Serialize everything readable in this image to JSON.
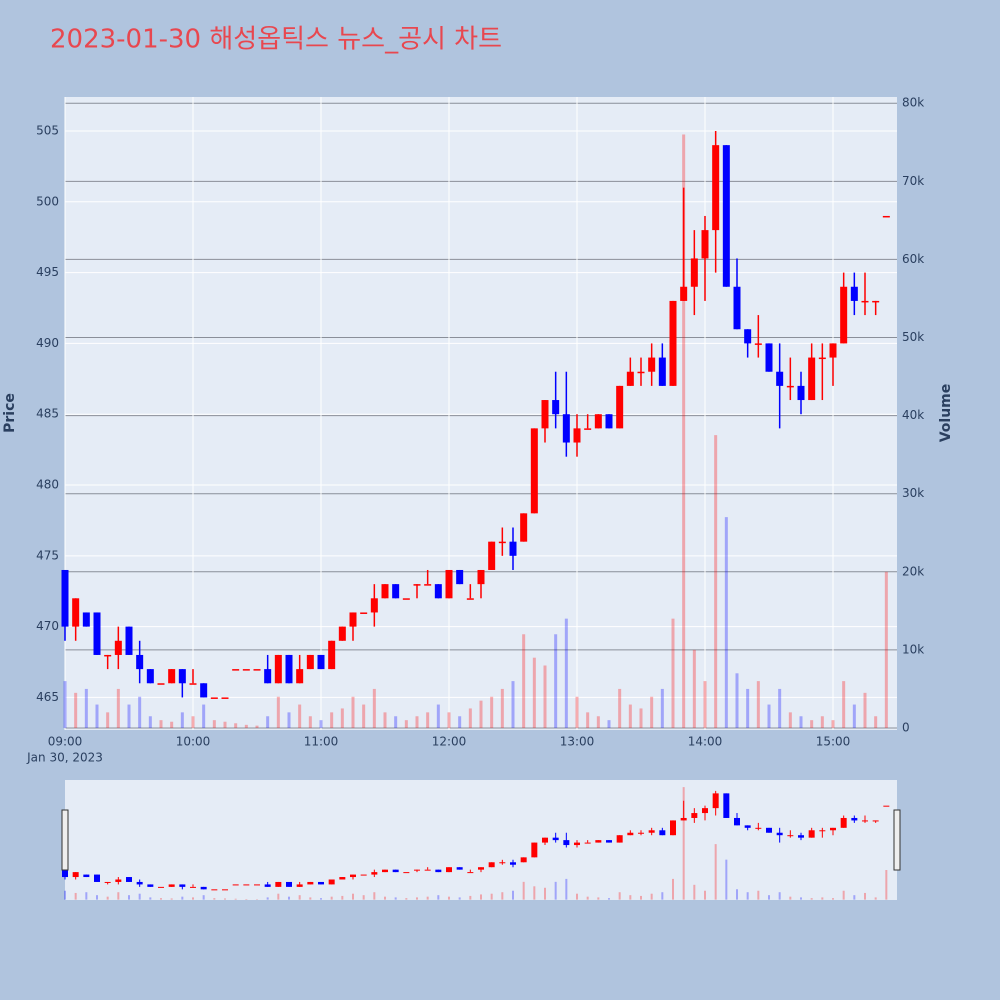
{
  "chart_data": {
    "type": "candlestick",
    "title": "2023-01-30 해성옵틱스 뉴스_공시 차트",
    "y_label": "Price",
    "y2_label": "Volume",
    "x_date_label": "Jan 30, 2023",
    "increasing_color": "#ff0000",
    "decreasing_color": "#0000ff",
    "xlim": [
      "09:00",
      "15:30"
    ],
    "xticks": [
      "09:00",
      "10:00",
      "11:00",
      "12:00",
      "13:00",
      "14:00",
      "15:00"
    ],
    "ylim": [
      462.7,
      507.4
    ],
    "yticks": [
      465,
      470,
      475,
      480,
      485,
      490,
      495,
      500,
      505
    ],
    "y2lim": [
      -260,
      80800
    ],
    "y2ticks": [
      0,
      {
        "value": 10000,
        "label": "10k"
      },
      {
        "value": 20000,
        "label": "20k"
      },
      {
        "value": 30000,
        "label": "30k"
      },
      {
        "value": 40000,
        "label": "40k"
      },
      {
        "value": 50000,
        "label": "50k"
      },
      {
        "value": 60000,
        "label": "60k"
      },
      {
        "value": 70000,
        "label": "70k"
      },
      {
        "value": 80000,
        "label": "80k"
      }
    ],
    "x": [
      "09:00",
      "09:05",
      "09:10",
      "09:15",
      "09:20",
      "09:25",
      "09:30",
      "09:35",
      "09:40",
      "09:45",
      "09:50",
      "09:55",
      "10:00",
      "10:05",
      "10:10",
      "10:15",
      "10:20",
      "10:25",
      "10:30",
      "10:35",
      "10:40",
      "10:45",
      "10:50",
      "10:55",
      "11:00",
      "11:05",
      "11:10",
      "11:15",
      "11:20",
      "11:25",
      "11:30",
      "11:35",
      "11:40",
      "11:45",
      "11:50",
      "11:55",
      "12:00",
      "12:05",
      "12:10",
      "12:15",
      "12:20",
      "12:25",
      "12:30",
      "12:35",
      "12:40",
      "12:45",
      "12:50",
      "12:55",
      "13:00",
      "13:05",
      "13:10",
      "13:15",
      "13:20",
      "13:25",
      "13:30",
      "13:35",
      "13:40",
      "13:45",
      "13:50",
      "13:55",
      "14:00",
      "14:05",
      "14:10",
      "14:15",
      "14:20",
      "14:25",
      "14:30",
      "14:35",
      "14:40",
      "14:45",
      "14:50",
      "14:55",
      "15:00",
      "15:05",
      "15:10",
      "15:15",
      "15:20",
      "15:25"
    ],
    "open": [
      474,
      470,
      471,
      471,
      468,
      468,
      470,
      468,
      467,
      466,
      466,
      467,
      466,
      466,
      465,
      465,
      467,
      467,
      467,
      467,
      466,
      468,
      466,
      467,
      468,
      467,
      469,
      470,
      471,
      471,
      472,
      473,
      472,
      473,
      473,
      473,
      472,
      474,
      472,
      473,
      474,
      476,
      476,
      476,
      478,
      484,
      486,
      485,
      483,
      484,
      484,
      485,
      484,
      487,
      488,
      488,
      489,
      487,
      493,
      494,
      496,
      498,
      504,
      494,
      491,
      490,
      490,
      488,
      487,
      487,
      486,
      489,
      489,
      490,
      494,
      493,
      493,
      499
    ],
    "high": [
      474,
      472,
      471,
      471,
      468,
      470,
      470,
      469,
      467,
      466,
      467,
      467,
      467,
      466,
      465,
      465,
      467,
      467,
      467,
      468,
      468,
      468,
      468,
      468,
      468,
      469,
      470,
      471,
      471,
      473,
      473,
      473,
      472,
      473,
      474,
      473,
      474,
      474,
      473,
      474,
      476,
      477,
      477,
      478,
      484,
      486,
      488,
      488,
      485,
      485,
      485,
      485,
      487,
      489,
      489,
      490,
      490,
      493,
      501,
      498,
      499,
      505,
      504,
      496,
      491,
      492,
      490,
      490,
      489,
      488,
      490,
      490,
      490,
      495,
      495,
      495,
      493,
      499
    ],
    "low": [
      469,
      469,
      470,
      468,
      467,
      467,
      468,
      466,
      466,
      466,
      466,
      465,
      466,
      465,
      465,
      465,
      467,
      467,
      467,
      466,
      466,
      466,
      466,
      467,
      467,
      467,
      469,
      469,
      471,
      470,
      472,
      472,
      472,
      472,
      473,
      472,
      472,
      473,
      472,
      472,
      474,
      475,
      474,
      476,
      478,
      483,
      484,
      482,
      482,
      484,
      484,
      484,
      484,
      487,
      487,
      487,
      487,
      487,
      493,
      492,
      493,
      495,
      494,
      491,
      489,
      489,
      488,
      484,
      486,
      485,
      486,
      486,
      487,
      490,
      492,
      492,
      492,
      499
    ],
    "close": [
      470,
      472,
      470,
      468,
      468,
      469,
      468,
      467,
      466,
      466,
      467,
      466,
      466,
      465,
      465,
      465,
      467,
      467,
      467,
      466,
      468,
      466,
      467,
      468,
      467,
      469,
      470,
      471,
      471,
      472,
      473,
      472,
      472,
      473,
      473,
      472,
      474,
      473,
      472,
      474,
      476,
      476,
      475,
      478,
      484,
      486,
      485,
      483,
      484,
      484,
      485,
      484,
      487,
      488,
      488,
      489,
      487,
      493,
      494,
      496,
      498,
      504,
      494,
      491,
      490,
      490,
      488,
      487,
      487,
      486,
      489,
      489,
      490,
      494,
      493,
      493,
      493,
      499
    ],
    "volume": [
      6000,
      4500,
      5000,
      3000,
      2000,
      5000,
      3000,
      4000,
      1500,
      1000,
      800,
      2000,
      1500,
      3000,
      1000,
      800,
      600,
      400,
      300,
      1500,
      4000,
      2000,
      3000,
      1500,
      1000,
      2000,
      2500,
      4000,
      3000,
      5000,
      2000,
      1500,
      1000,
      1500,
      2000,
      3000,
      2000,
      1500,
      2500,
      3500,
      4000,
      5000,
      6000,
      12000,
      9000,
      8000,
      12000,
      14000,
      4000,
      2000,
      1500,
      1000,
      5000,
      3000,
      2500,
      4000,
      5000,
      14000,
      76000,
      10000,
      6000,
      37500,
      27000,
      7000,
      5000,
      6000,
      3000,
      5000,
      2000,
      1500,
      1000,
      1500,
      1000,
      6000,
      3000,
      4500,
      1500,
      20000
    ]
  }
}
